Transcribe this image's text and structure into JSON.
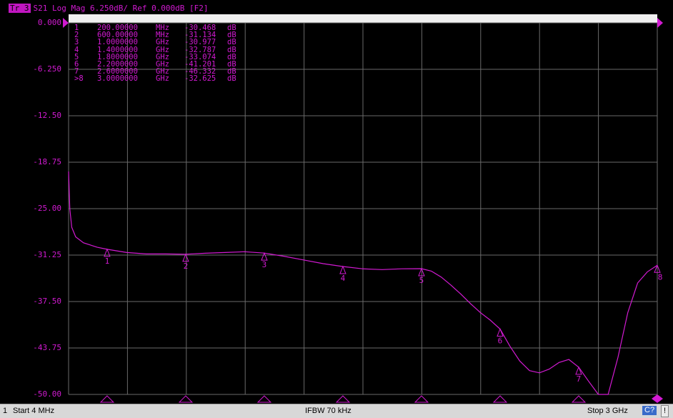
{
  "header": {
    "trace_label": "Tr 3",
    "text": "S21 Log Mag 6.250dB/ Ref 0.000dB [F2]"
  },
  "y_ticks": [
    "0.000",
    "-6.250",
    "-12.50",
    "-18.75",
    "-25.00",
    "-31.25",
    "-37.50",
    "-43.75",
    "-50.00"
  ],
  "markers": [
    {
      "id": "1",
      "freq": "200.00000",
      "unit": "MHz",
      "value": "-30.468",
      "db": "dB",
      "x_mhz": 200,
      "y_db": -30.468
    },
    {
      "id": "2",
      "freq": "600.00000",
      "unit": "MHz",
      "value": "-31.134",
      "db": "dB",
      "x_mhz": 600,
      "y_db": -31.134
    },
    {
      "id": "3",
      "freq": "1.0000000",
      "unit": "GHz",
      "value": "-30.977",
      "db": "dB",
      "x_mhz": 1000,
      "y_db": -30.977
    },
    {
      "id": "4",
      "freq": "1.4000000",
      "unit": "GHz",
      "value": "-32.787",
      "db": "dB",
      "x_mhz": 1400,
      "y_db": -32.787
    },
    {
      "id": "5",
      "freq": "1.8000000",
      "unit": "GHz",
      "value": "-33.074",
      "db": "dB",
      "x_mhz": 1800,
      "y_db": -33.074
    },
    {
      "id": "6",
      "freq": "2.2000000",
      "unit": "GHz",
      "value": "-41.201",
      "db": "dB",
      "x_mhz": 2200,
      "y_db": -41.201
    },
    {
      "id": "7",
      "freq": "2.6000000",
      "unit": "GHz",
      "value": "-46.332",
      "db": "dB",
      "x_mhz": 2600,
      "y_db": -46.332
    },
    {
      "id": ">8",
      "freq": "3.0000000",
      "unit": "GHz",
      "value": "-32.625",
      "db": "dB",
      "x_mhz": 3000,
      "y_db": -32.625
    }
  ],
  "status": {
    "channel": "1",
    "start": "Start 4 MHz",
    "ifbw": "IFBW 70 kHz",
    "stop": "Stop 3 GHz",
    "c_button": "C?",
    "excl": "!"
  },
  "colors": {
    "trace": "#d21ad2",
    "background": "#000000",
    "grid": "#6a6a6a"
  },
  "chart_data": {
    "type": "line",
    "xlabel": "",
    "ylabel": "",
    "x_unit": "MHz",
    "xlim": [
      4,
      3000
    ],
    "ylim": [
      -50,
      0
    ],
    "y_unit": "dB",
    "grid": true,
    "series": [
      {
        "x": [
          4,
          10,
          20,
          40,
          80,
          150,
          200,
          300,
          400,
          500,
          600,
          700,
          800,
          900,
          1000,
          1100,
          1200,
          1300,
          1400,
          1500,
          1600,
          1700,
          1800,
          1850,
          1900,
          1950,
          2000,
          2050,
          2100,
          2150,
          2200,
          2250,
          2300,
          2350,
          2400,
          2450,
          2500,
          2550,
          2600,
          2650,
          2700,
          2750,
          2800,
          2850,
          2900,
          2950,
          3000
        ],
        "y": [
          -20,
          -25,
          -27.5,
          -28.8,
          -29.6,
          -30.2,
          -30.468,
          -30.9,
          -31.1,
          -31.1,
          -31.134,
          -31.0,
          -30.9,
          -30.8,
          -30.977,
          -31.4,
          -31.9,
          -32.4,
          -32.787,
          -33.1,
          -33.2,
          -33.1,
          -33.074,
          -33.4,
          -34.2,
          -35.3,
          -36.5,
          -37.8,
          -39.0,
          -40.0,
          -41.201,
          -43.5,
          -45.5,
          -46.8,
          -47.1,
          -46.6,
          -45.7,
          -45.3,
          -46.332,
          -48.2,
          -50,
          -50,
          -45,
          -39,
          -35,
          -33.5,
          -32.625
        ]
      }
    ]
  }
}
